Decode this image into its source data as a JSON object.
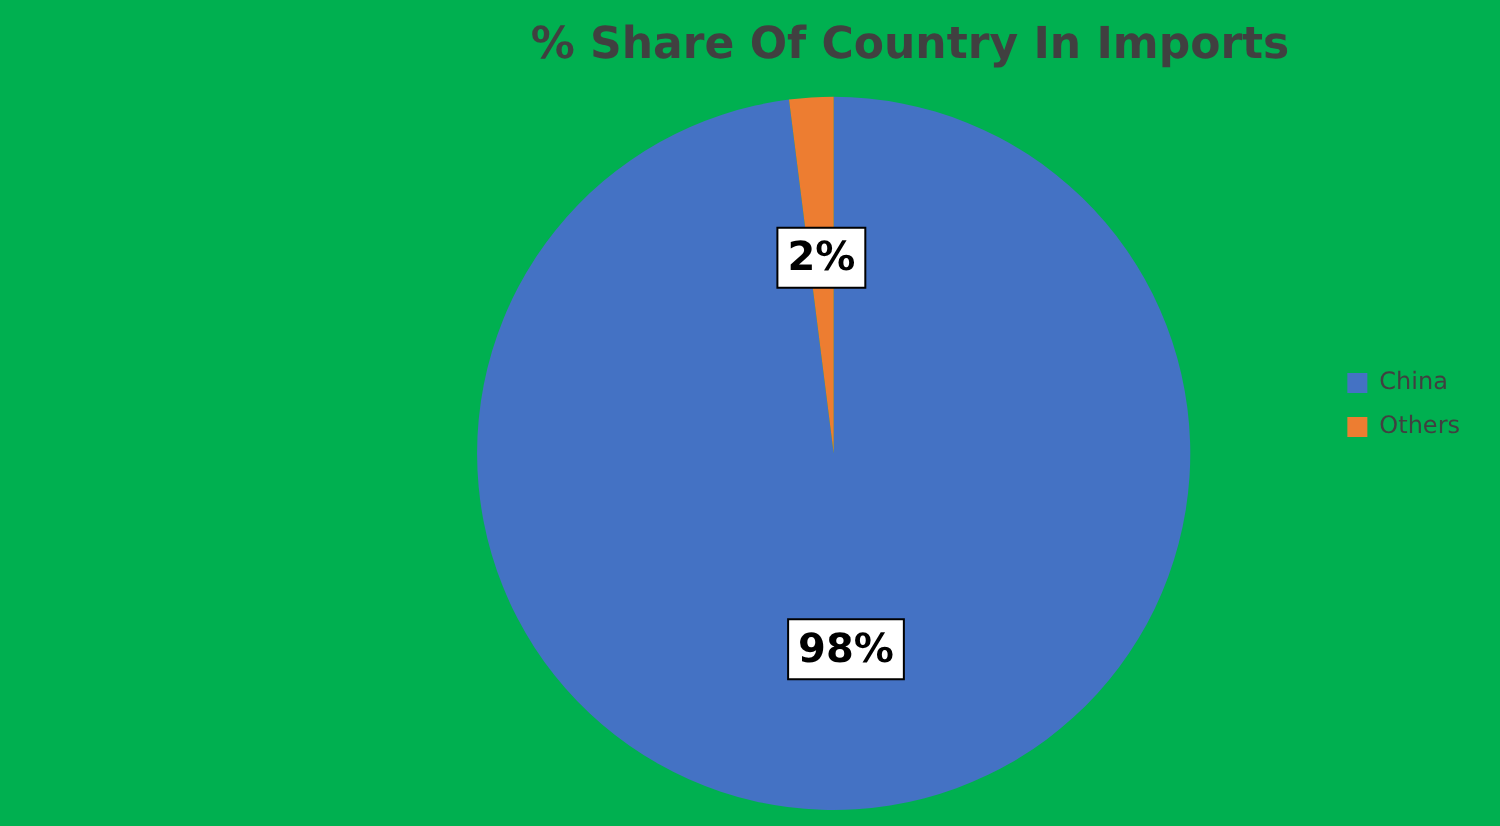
{
  "chart_data": {
    "type": "pie",
    "title": "% Share Of Country In Imports",
    "categories": [
      "China",
      "Others"
    ],
    "values": [
      98,
      2
    ],
    "colors": [
      "#4472c4",
      "#ed7d31"
    ],
    "value_labels": [
      "98%",
      "2%"
    ],
    "legend": "right"
  }
}
